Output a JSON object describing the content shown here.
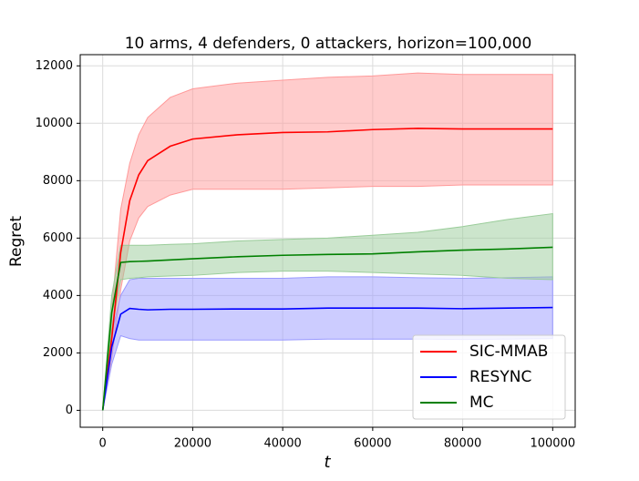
{
  "chart_data": {
    "type": "line",
    "title": "10 arms, 4 defenders, 0 attackers, horizon=100,000",
    "x_label": "t",
    "y_label": "Regret",
    "x": [
      0,
      2000,
      4000,
      6000,
      8000,
      10000,
      15000,
      20000,
      30000,
      40000,
      50000,
      60000,
      70000,
      80000,
      90000,
      100000
    ],
    "series": [
      {
        "name": "SIC-MMAB",
        "color": "#ff0000",
        "band_color": "#ff9999",
        "values": [
          0,
          2500,
          5500,
          7300,
          8200,
          8700,
          9200,
          9450,
          9600,
          9680,
          9700,
          9780,
          9820,
          9800,
          9800,
          9800
        ],
        "upper": [
          0,
          3500,
          7000,
          8600,
          9600,
          10200,
          10900,
          11200,
          11400,
          11500,
          11600,
          11650,
          11750,
          11700,
          11700,
          11700
        ],
        "lower": [
          0,
          1800,
          4200,
          5900,
          6700,
          7100,
          7500,
          7700,
          7700,
          7700,
          7750,
          7800,
          7800,
          7850,
          7850,
          7850
        ]
      },
      {
        "name": "RESYNC",
        "color": "#0000ff",
        "band_color": "#9999ff",
        "values": [
          0,
          2200,
          3350,
          3550,
          3520,
          3500,
          3520,
          3520,
          3530,
          3530,
          3560,
          3560,
          3560,
          3540,
          3560,
          3580
        ],
        "upper": [
          0,
          2700,
          4000,
          4550,
          4600,
          4600,
          4600,
          4600,
          4600,
          4600,
          4650,
          4650,
          4620,
          4600,
          4620,
          4650
        ],
        "lower": [
          0,
          1600,
          2600,
          2500,
          2450,
          2450,
          2450,
          2450,
          2450,
          2450,
          2480,
          2480,
          2480,
          2470,
          2480,
          2500
        ]
      },
      {
        "name": "MC",
        "color": "#008000",
        "band_color": "#99cc99",
        "values": [
          0,
          3400,
          5150,
          5180,
          5190,
          5200,
          5240,
          5280,
          5350,
          5400,
          5430,
          5450,
          5520,
          5580,
          5620,
          5680
        ],
        "upper": [
          0,
          4000,
          5750,
          5750,
          5750,
          5750,
          5780,
          5800,
          5900,
          5950,
          6000,
          6100,
          6200,
          6400,
          6650,
          6850
        ],
        "lower": [
          0,
          2800,
          4550,
          4600,
          4620,
          4650,
          4680,
          4700,
          4800,
          4850,
          4850,
          4800,
          4750,
          4700,
          4600,
          4550
        ]
      }
    ],
    "xlim": [
      -5000,
      105000
    ],
    "xticks": [
      0,
      20000,
      40000,
      60000,
      80000,
      100000
    ],
    "ylim": [
      -590,
      12390
    ],
    "yticks": [
      0,
      2000,
      4000,
      6000,
      8000,
      10000,
      12000
    ],
    "grid": true,
    "legend": "lower right"
  }
}
